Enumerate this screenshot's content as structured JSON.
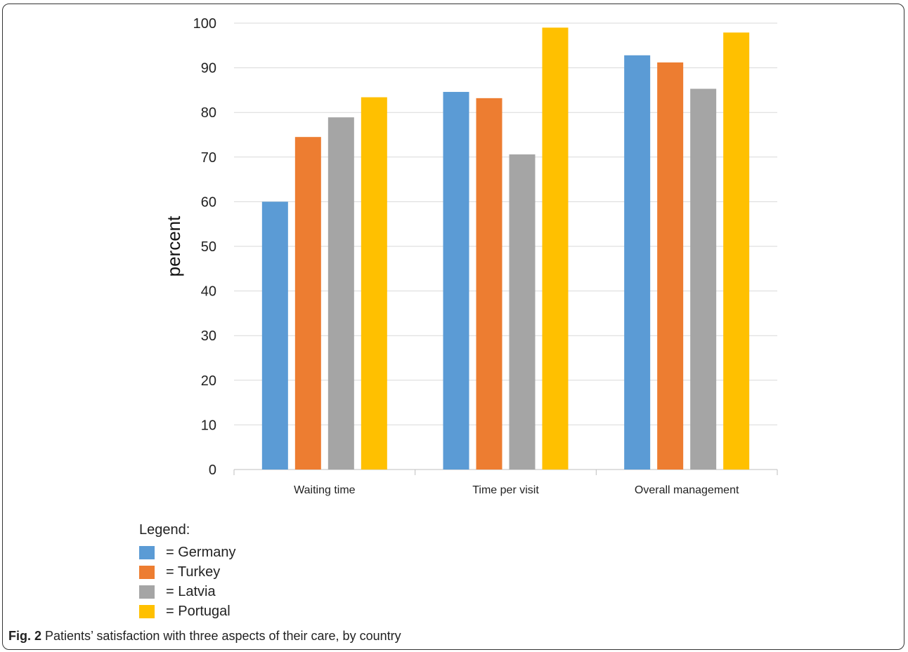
{
  "chart_data": {
    "type": "bar",
    "categories": [
      "Waiting time",
      "Time per visit",
      "Overall management"
    ],
    "series": [
      {
        "name": "Germany",
        "color": "#5B9BD5",
        "values": [
          60.0,
          84.6,
          92.8
        ]
      },
      {
        "name": "Turkey",
        "color": "#ED7D31",
        "values": [
          74.5,
          83.2,
          91.2
        ]
      },
      {
        "name": "Latvia",
        "color": "#A5A5A5",
        "values": [
          78.9,
          70.6,
          85.3
        ]
      },
      {
        "name": "Portugal",
        "color": "#FFC000",
        "values": [
          83.4,
          99.0,
          97.9
        ]
      }
    ],
    "ylabel": "percent",
    "ylim": [
      0,
      100
    ],
    "yticks": [
      0,
      10,
      20,
      30,
      40,
      50,
      60,
      70,
      80,
      90,
      100
    ],
    "grid": true
  },
  "legend": {
    "title": "Legend:",
    "items": [
      {
        "label": "= Germany",
        "color": "#5B9BD5"
      },
      {
        "label": "= Turkey",
        "color": "#ED7D31"
      },
      {
        "label": "= Latvia",
        "color": "#A5A5A5"
      },
      {
        "label": "= Portugal",
        "color": "#FFC000"
      }
    ]
  },
  "caption": {
    "fig_label": "Fig. 2",
    "text": " Patients’ satisfaction with three aspects of their care, by country"
  }
}
